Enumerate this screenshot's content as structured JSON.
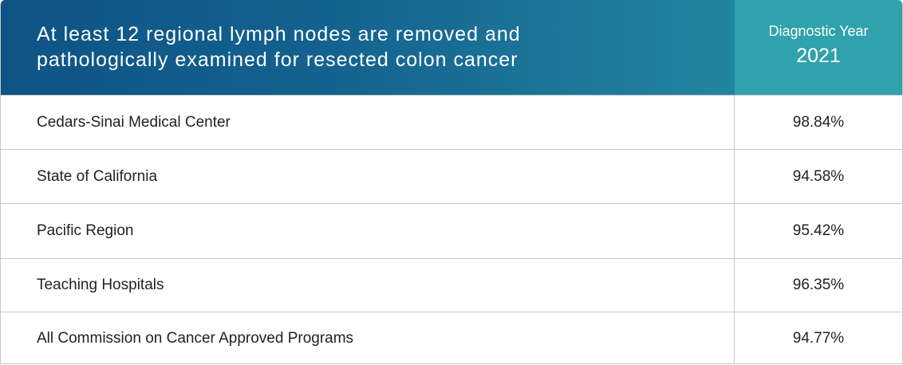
{
  "header": {
    "title_line1": "At least 12 regional lymph nodes are removed and",
    "title_line2": "pathologically examined for resected colon cancer",
    "column_label": "Diagnostic Year",
    "year": "2021"
  },
  "rows": [
    {
      "name": "Cedars-Sinai Medical Center",
      "value": "98.84%"
    },
    {
      "name": "State of California",
      "value": "94.58%"
    },
    {
      "name": "Pacific Region",
      "value": "95.42%"
    },
    {
      "name": "Teaching Hospitals",
      "value": "96.35%"
    },
    {
      "name": "All Commission on Cancer Approved Programs",
      "value": "94.77%"
    }
  ],
  "colors": {
    "header_dark": "#0e5385",
    "header_light": "#2385a0",
    "year_cell": "#2fa2ad",
    "border": "#c8c8c8"
  }
}
